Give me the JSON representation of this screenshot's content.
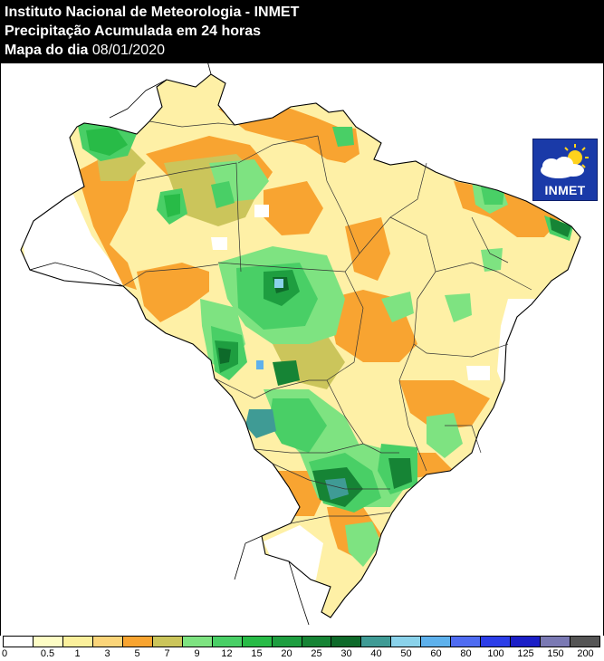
{
  "header": {
    "line1": "Instituto Nacional de Meteorologia - INMET",
    "line2": "Precipitação Acumulada em 24 horas",
    "line3_label": "Mapa do dia",
    "line3_date": "08/01/2020"
  },
  "logo": {
    "text": "INMET",
    "icon": "cloud-sun-icon"
  },
  "legend": {
    "unit": "",
    "labels": [
      "0",
      "0.5",
      "1",
      "3",
      "5",
      "7",
      "9",
      "12",
      "15",
      "20",
      "25",
      "30",
      "40",
      "50",
      "60",
      "80",
      "100",
      "125",
      "150",
      "200"
    ],
    "colors": [
      "#ffffff",
      "#fefdc5",
      "#fbf09c",
      "#fbd57a",
      "#f8a431",
      "#cbc55b",
      "#7ee381",
      "#49cf66",
      "#28bb47",
      "#1e9e40",
      "#168435",
      "#0e6a2a",
      "#3f9b95",
      "#8ad2ea",
      "#5eb1ec",
      "#4f6cf1",
      "#2c3ee8",
      "#1b1fc7",
      "#7a79b3",
      "#555555"
    ]
  }
}
